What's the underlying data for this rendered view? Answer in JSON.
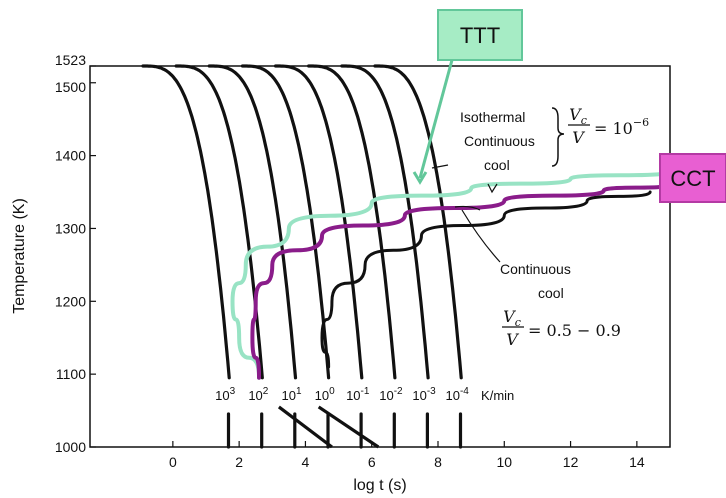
{
  "chart_data": {
    "type": "line",
    "xlabel": "log t (s)",
    "ylabel": "Temperature (K)",
    "xlim": [
      -2.5,
      15
    ],
    "ylim": [
      1000,
      1523
    ],
    "x_ticks": [
      0,
      2,
      4,
      6,
      8,
      10,
      12,
      14
    ],
    "y_ticks": [
      1000,
      1100,
      1200,
      1300,
      1400,
      1500,
      1523
    ],
    "cooling_rates": [
      {
        "label": "10",
        "exp": "3",
        "t0": -0.9,
        "x_end": 1.7
      },
      {
        "label": "10",
        "exp": "2",
        "t0": 0.1,
        "x_end": 2.7
      },
      {
        "label": "10",
        "exp": "1",
        "t0": 1.1,
        "x_end": 3.7
      },
      {
        "label": "10",
        "exp": "0",
        "t0": 2.1,
        "x_end": 4.7
      },
      {
        "label": "10",
        "exp": "-1",
        "t0": 3.1,
        "x_end": 5.7
      },
      {
        "label": "10",
        "exp": "-2",
        "t0": 4.1,
        "x_end": 6.7
      },
      {
        "label": "10",
        "exp": "-3",
        "t0": 5.1,
        "x_end": 7.7
      },
      {
        "label": "10",
        "exp": "-4",
        "t0": 6.1,
        "x_end": 8.7
      }
    ],
    "rate_unit": "K/min",
    "series": [
      {
        "color": "#98e3c4",
        "points": [
          [
            2.6,
            1095
          ],
          [
            2.0,
            1150
          ],
          [
            1.8,
            1200
          ],
          [
            2.2,
            1250
          ],
          [
            3.5,
            1300
          ],
          [
            6,
            1335
          ],
          [
            9,
            1355
          ],
          [
            12,
            1368
          ],
          [
            15,
            1378
          ]
        ]
      },
      {
        "color": "#8a1c8a",
        "points": [
          [
            2.6,
            1095
          ],
          [
            2.4,
            1150
          ],
          [
            2.5,
            1200
          ],
          [
            3.0,
            1250
          ],
          [
            4.5,
            1290
          ],
          [
            7,
            1318
          ],
          [
            10,
            1338
          ],
          [
            13,
            1352
          ],
          [
            15,
            1360
          ]
        ]
      },
      {
        "color": "#111111",
        "points": [
          [
            4.7,
            1110
          ],
          [
            4.5,
            1150
          ],
          [
            4.8,
            1200
          ],
          [
            5.8,
            1250
          ],
          [
            7.5,
            1290
          ],
          [
            10,
            1318
          ],
          [
            12.5,
            1338
          ],
          [
            14.4,
            1350
          ]
        ]
      }
    ]
  },
  "annotations": {
    "isothermal": "Isothermal",
    "continuous_top": "Continuous",
    "cool_top": "cool",
    "continuous_bottom": "Continuous",
    "cool_bottom": "cool",
    "eq1_rhs": "= 10",
    "eq1_exp": "−6",
    "eq2_rhs": "= 0.5 − 0.9",
    "frac_num": "V",
    "frac_num_sub": "c",
    "frac_den": "V"
  },
  "boxes": {
    "ttt": {
      "label": "TTT",
      "fill": "#a6ecc5",
      "stroke": "#62c79a"
    },
    "cct": {
      "label": "CCT",
      "fill": "#e85fd2",
      "stroke": "#b43aa4"
    }
  }
}
